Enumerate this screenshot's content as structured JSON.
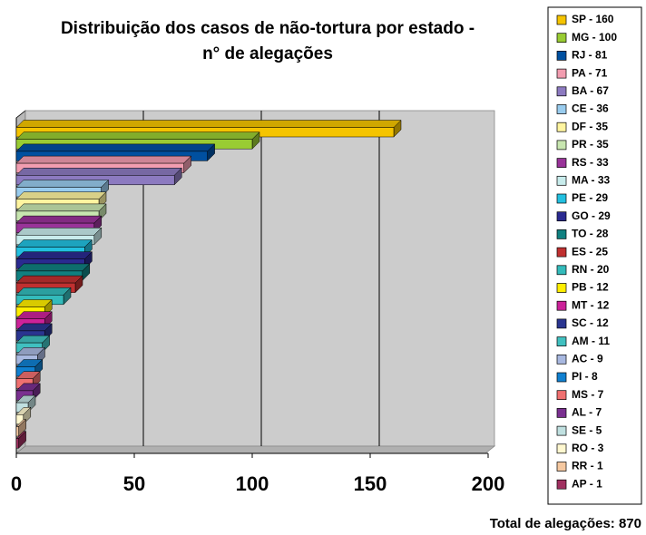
{
  "chart_data": {
    "type": "bar3d",
    "title": [
      "Distribuição dos casos de não-tortura por estado -",
      "n° de alegações"
    ],
    "categories": [
      "SP - 160",
      "MG - 100",
      "RJ - 81",
      "PA - 71",
      "BA - 67",
      "CE - 36",
      "DF - 35",
      "PR - 35",
      "RS - 33",
      "MA - 33",
      "PE - 29",
      "GO - 29",
      "TO - 28",
      "ES - 25",
      "RN - 20",
      "PB - 12",
      "MT - 12",
      "SC - 12",
      "AM - 11",
      "AC - 9",
      "PI - 8",
      "MS - 7",
      "AL - 7",
      "SE - 5",
      "RO - 3",
      "RR - 1",
      "AP - 1"
    ],
    "values": [
      160,
      100,
      81,
      71,
      67,
      36,
      35,
      35,
      33,
      33,
      29,
      29,
      28,
      25,
      20,
      12,
      12,
      12,
      11,
      9,
      8,
      7,
      7,
      5,
      3,
      1,
      1
    ],
    "colors": [
      "#f5c400",
      "#99cc33",
      "#0050a0",
      "#f29db0",
      "#8c7ac0",
      "#99ccee",
      "#fff5a0",
      "#c8e6b0",
      "#993399",
      "#c8ecec",
      "#22c0e0",
      "#2a2a90",
      "#108080",
      "#c03030",
      "#33bbbb",
      "#ffee00",
      "#cc2299",
      "#2a3590",
      "#40c0c0",
      "#a8b8e0",
      "#1080d0",
      "#f07070",
      "#7a3090",
      "#c0e0e0",
      "#fff8d0",
      "#f5c8a0",
      "#a03060"
    ],
    "xlim": [
      0,
      200
    ],
    "xticks": [
      0,
      50,
      100,
      150,
      200
    ],
    "grid": true,
    "annotation": "Total de alegações: 870"
  }
}
